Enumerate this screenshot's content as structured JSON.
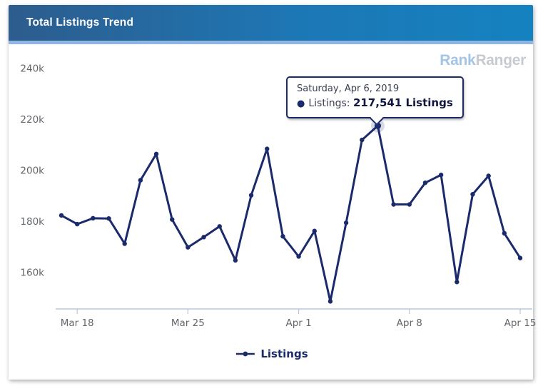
{
  "header": {
    "title": "Total Listings Trend"
  },
  "watermark": {
    "part1": "Rank",
    "part2": "Ranger"
  },
  "tooltip": {
    "date_line": "Saturday, Apr 6, 2019",
    "bullet": "●",
    "series_label": "Listings:",
    "value_text": "217,541 Listings"
  },
  "legend": {
    "label": "Listings"
  },
  "colors": {
    "line": "#1b2a6b",
    "point_halo": "rgba(27,42,107,0.18)",
    "axis_line": "#b9c9d9",
    "axis_label": "#63666b",
    "header_gradient_left": "#2d5c8d",
    "header_gradient_right": "#1582c0",
    "header_strip": "#8fb6e3",
    "watermark_blue": "#a4c4e6",
    "watermark_gray": "#c7cbd1",
    "tooltip_border": "#1b2a6b"
  },
  "chart_data": {
    "type": "line",
    "title": "Total Listings Trend",
    "xlabel": "",
    "ylabel": "",
    "grid": false,
    "legend_position": "bottom",
    "x_dates": [
      "Mar 17",
      "Mar 18",
      "Mar 19",
      "Mar 20",
      "Mar 21",
      "Mar 22",
      "Mar 23",
      "Mar 24",
      "Mar 25",
      "Mar 26",
      "Mar 27",
      "Mar 28",
      "Mar 29",
      "Mar 30",
      "Mar 31",
      "Apr 1",
      "Apr 2",
      "Apr 3",
      "Apr 4",
      "Apr 5",
      "Apr 6",
      "Apr 7",
      "Apr 8",
      "Apr 9",
      "Apr 10",
      "Apr 11",
      "Apr 12",
      "Apr 13",
      "Apr 14",
      "Apr 15"
    ],
    "series": [
      {
        "name": "Listings",
        "color": "#1b2a6b",
        "values": [
          182400,
          179000,
          181300,
          181200,
          171300,
          196200,
          206500,
          180800,
          169900,
          173900,
          178100,
          164800,
          190300,
          208500,
          174200,
          166300,
          176300,
          148700,
          179500,
          212000,
          217541,
          186700,
          186700,
          195200,
          198300,
          156300,
          190700,
          197900,
          175400,
          165700
        ]
      }
    ],
    "x_tick_labels": [
      "Mar 18",
      "Mar 25",
      "Apr 1",
      "Apr 8",
      "Apr 15"
    ],
    "y_ticks": [
      240000,
      220000,
      200000,
      180000,
      160000
    ],
    "y_tick_labels": [
      "240k",
      "220k",
      "200k",
      "180k",
      "160k"
    ],
    "ylim": [
      145500,
      242500
    ],
    "highlight": {
      "index": 20,
      "date": "Saturday, Apr 6, 2019",
      "series": "Listings",
      "value": 217541
    }
  }
}
